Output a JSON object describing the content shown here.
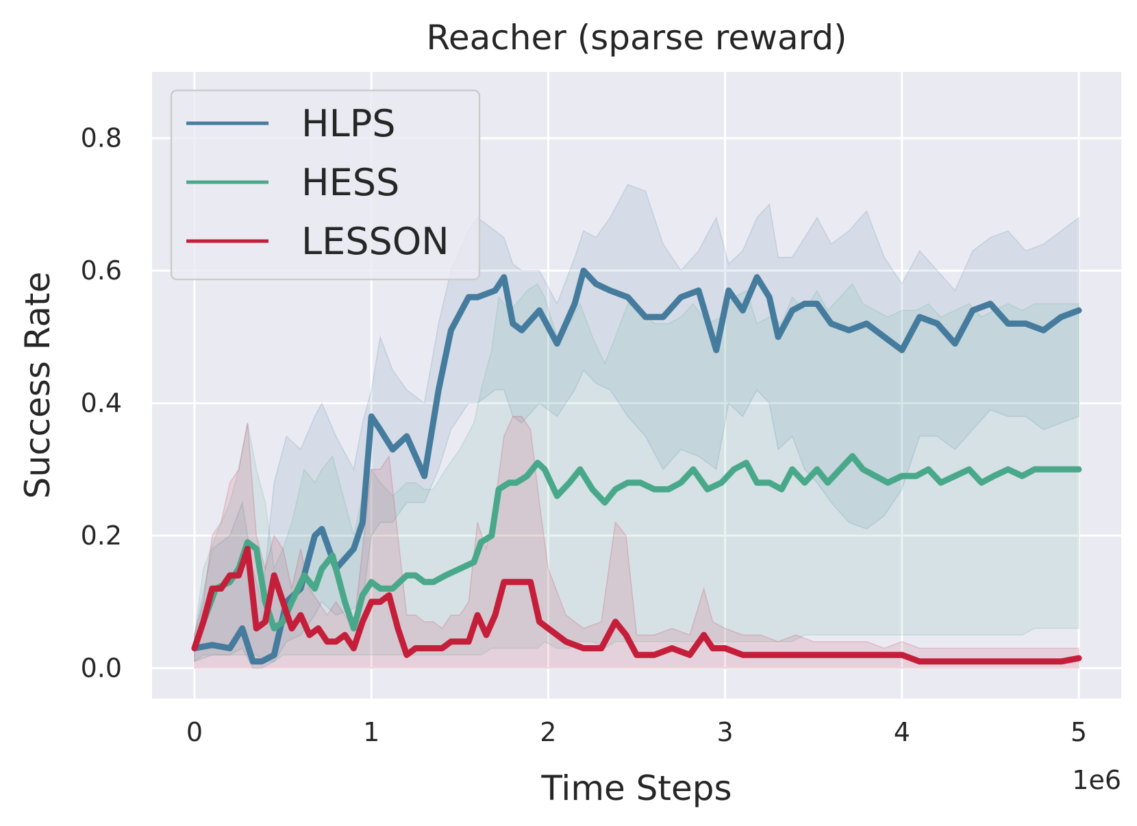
{
  "chart_data": {
    "type": "line",
    "title": "Reacher (sparse reward)",
    "xlabel": "Time Steps",
    "ylabel": "Success Rate",
    "x_offset_label": "1e6",
    "x_multiplier": 1000000,
    "xlim": [
      -0.24,
      5.24
    ],
    "ylim": [
      -0.046,
      0.9
    ],
    "xticks": [
      0,
      1,
      2,
      3,
      4,
      5
    ],
    "xtick_labels": [
      "0",
      "1",
      "2",
      "3",
      "4",
      "5"
    ],
    "yticks": [
      0.0,
      0.2,
      0.4,
      0.6,
      0.8
    ],
    "ytick_labels": [
      "0.0",
      "0.2",
      "0.4",
      "0.6",
      "0.8"
    ],
    "grid": true,
    "legend_position": "top-left",
    "background": "#eaeaf2",
    "series": [
      {
        "name": "HLPS",
        "color": "#457b9d",
        "x": [
          0,
          0.1,
          0.2,
          0.27,
          0.33,
          0.38,
          0.45,
          0.52,
          0.6,
          0.68,
          0.72,
          0.8,
          0.9,
          0.95,
          1.0,
          1.05,
          1.12,
          1.2,
          1.3,
          1.38,
          1.45,
          1.55,
          1.6,
          1.7,
          1.75,
          1.8,
          1.85,
          1.95,
          2.05,
          2.15,
          2.2,
          2.27,
          2.35,
          2.45,
          2.55,
          2.65,
          2.75,
          2.85,
          2.95,
          3.02,
          3.1,
          3.18,
          3.25,
          3.3,
          3.38,
          3.45,
          3.52,
          3.6,
          3.7,
          3.8,
          3.9,
          4.0,
          4.1,
          4.2,
          4.3,
          4.4,
          4.5,
          4.6,
          4.7,
          4.8,
          4.9,
          5.0
        ],
        "y": [
          0.03,
          0.035,
          0.03,
          0.06,
          0.01,
          0.01,
          0.02,
          0.1,
          0.12,
          0.2,
          0.21,
          0.15,
          0.18,
          0.22,
          0.38,
          0.36,
          0.33,
          0.35,
          0.29,
          0.42,
          0.51,
          0.56,
          0.56,
          0.57,
          0.59,
          0.52,
          0.51,
          0.54,
          0.49,
          0.55,
          0.6,
          0.58,
          0.57,
          0.56,
          0.53,
          0.53,
          0.56,
          0.57,
          0.48,
          0.57,
          0.54,
          0.59,
          0.56,
          0.5,
          0.54,
          0.55,
          0.55,
          0.52,
          0.51,
          0.52,
          0.5,
          0.48,
          0.53,
          0.52,
          0.49,
          0.54,
          0.55,
          0.52,
          0.52,
          0.51,
          0.53,
          0.54
        ],
        "lower": [
          0.01,
          0.02,
          0.02,
          0.03,
          0.0,
          0.0,
          0.01,
          0.04,
          0.05,
          0.08,
          0.1,
          0.08,
          0.09,
          0.1,
          0.2,
          0.22,
          0.22,
          0.25,
          0.25,
          0.3,
          0.36,
          0.4,
          0.4,
          0.42,
          0.42,
          0.38,
          0.37,
          0.4,
          0.38,
          0.42,
          0.45,
          0.43,
          0.42,
          0.38,
          0.35,
          0.3,
          0.33,
          0.32,
          0.3,
          0.4,
          0.38,
          0.42,
          0.4,
          0.33,
          0.35,
          0.3,
          0.28,
          0.25,
          0.22,
          0.21,
          0.23,
          0.27,
          0.35,
          0.35,
          0.33,
          0.36,
          0.39,
          0.38,
          0.38,
          0.36,
          0.37,
          0.38
        ],
        "upper": [
          0.05,
          0.18,
          0.2,
          0.25,
          0.15,
          0.1,
          0.28,
          0.35,
          0.33,
          0.38,
          0.4,
          0.35,
          0.3,
          0.37,
          0.42,
          0.5,
          0.45,
          0.42,
          0.4,
          0.52,
          0.6,
          0.66,
          0.68,
          0.66,
          0.65,
          0.61,
          0.6,
          0.6,
          0.55,
          0.62,
          0.66,
          0.65,
          0.68,
          0.73,
          0.72,
          0.64,
          0.6,
          0.63,
          0.68,
          0.61,
          0.63,
          0.68,
          0.7,
          0.62,
          0.62,
          0.65,
          0.68,
          0.64,
          0.66,
          0.69,
          0.62,
          0.58,
          0.63,
          0.6,
          0.57,
          0.63,
          0.65,
          0.66,
          0.63,
          0.64,
          0.66,
          0.68
        ]
      },
      {
        "name": "HESS",
        "color": "#4aa88a",
        "x": [
          0,
          0.05,
          0.12,
          0.2,
          0.25,
          0.3,
          0.35,
          0.4,
          0.45,
          0.5,
          0.55,
          0.62,
          0.68,
          0.72,
          0.78,
          0.85,
          0.9,
          0.95,
          1.0,
          1.05,
          1.12,
          1.2,
          1.25,
          1.3,
          1.35,
          1.42,
          1.5,
          1.58,
          1.62,
          1.68,
          1.72,
          1.78,
          1.82,
          1.88,
          1.94,
          1.98,
          2.05,
          2.12,
          2.18,
          2.25,
          2.32,
          2.38,
          2.45,
          2.52,
          2.6,
          2.68,
          2.75,
          2.82,
          2.9,
          2.98,
          3.05,
          3.12,
          3.18,
          3.25,
          3.32,
          3.38,
          3.45,
          3.52,
          3.58,
          3.65,
          3.72,
          3.78,
          3.85,
          3.92,
          4.0,
          4.08,
          4.15,
          4.22,
          4.3,
          4.38,
          4.45,
          4.52,
          4.6,
          4.68,
          4.75,
          4.82,
          4.9,
          5.0
        ],
        "y": [
          0.03,
          0.07,
          0.12,
          0.13,
          0.15,
          0.19,
          0.18,
          0.1,
          0.06,
          0.07,
          0.1,
          0.14,
          0.12,
          0.15,
          0.17,
          0.1,
          0.06,
          0.11,
          0.13,
          0.12,
          0.12,
          0.14,
          0.14,
          0.13,
          0.13,
          0.14,
          0.15,
          0.16,
          0.19,
          0.2,
          0.27,
          0.28,
          0.28,
          0.29,
          0.31,
          0.3,
          0.26,
          0.28,
          0.3,
          0.27,
          0.25,
          0.27,
          0.28,
          0.28,
          0.27,
          0.27,
          0.28,
          0.3,
          0.27,
          0.28,
          0.3,
          0.31,
          0.28,
          0.28,
          0.27,
          0.3,
          0.28,
          0.3,
          0.28,
          0.3,
          0.32,
          0.3,
          0.29,
          0.28,
          0.29,
          0.29,
          0.3,
          0.28,
          0.29,
          0.3,
          0.28,
          0.29,
          0.3,
          0.29,
          0.3,
          0.3,
          0.3,
          0.3
        ],
        "lower": [
          0.01,
          0.02,
          0.02,
          0.02,
          0.02,
          0.02,
          0.02,
          0.01,
          0.01,
          0.02,
          0.02,
          0.02,
          0.02,
          0.02,
          0.02,
          0.02,
          0.02,
          0.02,
          0.02,
          0.02,
          0.02,
          0.02,
          0.02,
          0.02,
          0.02,
          0.02,
          0.02,
          0.02,
          0.02,
          0.03,
          0.03,
          0.03,
          0.03,
          0.03,
          0.03,
          0.04,
          0.03,
          0.03,
          0.04,
          0.04,
          0.03,
          0.04,
          0.04,
          0.04,
          0.04,
          0.04,
          0.04,
          0.04,
          0.04,
          0.04,
          0.04,
          0.04,
          0.04,
          0.04,
          0.04,
          0.04,
          0.05,
          0.05,
          0.05,
          0.05,
          0.05,
          0.05,
          0.05,
          0.05,
          0.05,
          0.05,
          0.05,
          0.05,
          0.05,
          0.05,
          0.05,
          0.05,
          0.05,
          0.05,
          0.06,
          0.06,
          0.06,
          0.06
        ],
        "upper": [
          0.05,
          0.15,
          0.2,
          0.25,
          0.3,
          0.37,
          0.3,
          0.25,
          0.15,
          0.18,
          0.22,
          0.3,
          0.28,
          0.3,
          0.32,
          0.25,
          0.2,
          0.26,
          0.3,
          0.28,
          0.26,
          0.28,
          0.28,
          0.27,
          0.27,
          0.3,
          0.33,
          0.37,
          0.42,
          0.48,
          0.56,
          0.54,
          0.55,
          0.57,
          0.58,
          0.56,
          0.5,
          0.52,
          0.55,
          0.5,
          0.46,
          0.5,
          0.55,
          0.54,
          0.52,
          0.52,
          0.53,
          0.55,
          0.52,
          0.53,
          0.56,
          0.57,
          0.52,
          0.53,
          0.52,
          0.56,
          0.54,
          0.57,
          0.54,
          0.56,
          0.58,
          0.55,
          0.54,
          0.53,
          0.54,
          0.54,
          0.55,
          0.53,
          0.54,
          0.55,
          0.53,
          0.54,
          0.55,
          0.54,
          0.55,
          0.55,
          0.55,
          0.55
        ]
      },
      {
        "name": "LESSON",
        "color": "#c41e3a",
        "x": [
          0,
          0.05,
          0.1,
          0.15,
          0.2,
          0.25,
          0.3,
          0.35,
          0.4,
          0.45,
          0.5,
          0.55,
          0.6,
          0.65,
          0.7,
          0.75,
          0.8,
          0.85,
          0.9,
          0.95,
          1.0,
          1.05,
          1.1,
          1.15,
          1.2,
          1.25,
          1.3,
          1.35,
          1.4,
          1.45,
          1.5,
          1.55,
          1.6,
          1.65,
          1.7,
          1.75,
          1.8,
          1.85,
          1.9,
          1.95,
          2.0,
          2.1,
          2.2,
          2.3,
          2.38,
          2.44,
          2.5,
          2.55,
          2.6,
          2.7,
          2.8,
          2.88,
          2.93,
          3.0,
          3.1,
          3.2,
          3.3,
          3.4,
          3.5,
          3.6,
          3.7,
          3.8,
          3.9,
          4.0,
          4.1,
          4.2,
          4.3,
          4.4,
          4.5,
          4.6,
          4.7,
          4.8,
          4.9,
          5.0
        ],
        "y": [
          0.03,
          0.07,
          0.12,
          0.12,
          0.14,
          0.14,
          0.18,
          0.06,
          0.07,
          0.14,
          0.1,
          0.06,
          0.08,
          0.05,
          0.06,
          0.04,
          0.04,
          0.05,
          0.03,
          0.07,
          0.1,
          0.1,
          0.11,
          0.06,
          0.02,
          0.03,
          0.03,
          0.03,
          0.03,
          0.04,
          0.04,
          0.04,
          0.08,
          0.05,
          0.08,
          0.13,
          0.13,
          0.13,
          0.13,
          0.07,
          0.06,
          0.04,
          0.03,
          0.03,
          0.07,
          0.05,
          0.02,
          0.02,
          0.02,
          0.03,
          0.02,
          0.05,
          0.03,
          0.03,
          0.02,
          0.02,
          0.02,
          0.02,
          0.02,
          0.02,
          0.02,
          0.02,
          0.02,
          0.02,
          0.01,
          0.01,
          0.01,
          0.01,
          0.01,
          0.01,
          0.01,
          0.01,
          0.01,
          0.015
        ],
        "lower": [
          0.0,
          0.0,
          0.0,
          0.0,
          0.0,
          0.0,
          0.0,
          0.0,
          0.0,
          0.0,
          0.0,
          0.0,
          0.0,
          0.0,
          0.0,
          0.0,
          0.0,
          0.0,
          0.0,
          0.0,
          0.0,
          0.0,
          0.0,
          0.0,
          0.0,
          0.0,
          0.0,
          0.0,
          0.0,
          0.0,
          0.0,
          0.0,
          0.0,
          0.0,
          0.0,
          0.0,
          0.0,
          0.0,
          0.0,
          0.0,
          0.0,
          0.0,
          0.0,
          0.0,
          0.0,
          0.0,
          0.0,
          0.0,
          0.0,
          0.0,
          0.0,
          0.0,
          0.0,
          0.0,
          0.0,
          0.0,
          0.0,
          0.0,
          0.0,
          0.0,
          0.0,
          0.0,
          0.0,
          0.0,
          0.0,
          0.0,
          0.0,
          0.0,
          0.0,
          0.0,
          0.0,
          0.0,
          0.0,
          0.0
        ],
        "upper": [
          0.05,
          0.1,
          0.2,
          0.22,
          0.28,
          0.3,
          0.37,
          0.2,
          0.15,
          0.2,
          0.18,
          0.12,
          0.18,
          0.12,
          0.1,
          0.08,
          0.1,
          0.08,
          0.06,
          0.18,
          0.3,
          0.3,
          0.32,
          0.2,
          0.08,
          0.08,
          0.07,
          0.07,
          0.06,
          0.08,
          0.08,
          0.1,
          0.22,
          0.18,
          0.25,
          0.35,
          0.38,
          0.38,
          0.36,
          0.25,
          0.15,
          0.08,
          0.06,
          0.07,
          0.22,
          0.2,
          0.05,
          0.05,
          0.05,
          0.06,
          0.05,
          0.12,
          0.07,
          0.06,
          0.05,
          0.05,
          0.04,
          0.05,
          0.04,
          0.04,
          0.04,
          0.04,
          0.03,
          0.04,
          0.03,
          0.03,
          0.03,
          0.03,
          0.03,
          0.03,
          0.03,
          0.03,
          0.03,
          0.03
        ]
      }
    ]
  }
}
